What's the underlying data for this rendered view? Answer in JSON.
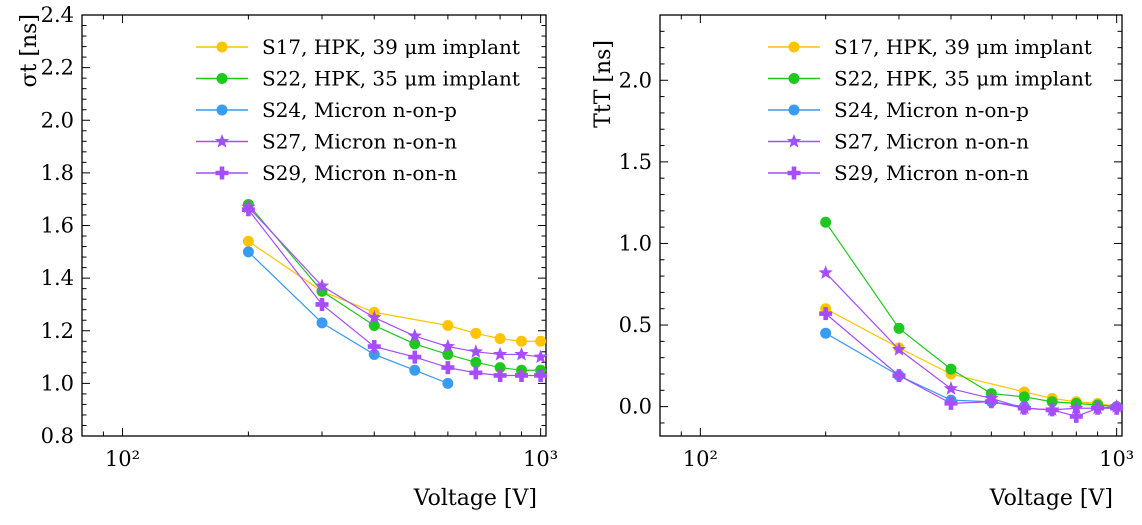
{
  "chart_data": [
    {
      "type": "line",
      "x_scale": "log",
      "xlabel": "Voltage [V]",
      "ylabel": "σt [ns]",
      "xlim": [
        80,
        1030
      ],
      "ylim": [
        0.8,
        2.4
      ],
      "xticks": [
        {
          "value": 100,
          "label": "10²"
        },
        {
          "value": 1000,
          "label": "10³"
        }
      ],
      "yticks": [
        {
          "value": 0.8,
          "label": "0.8"
        },
        {
          "value": 1.0,
          "label": "1.0"
        },
        {
          "value": 1.2,
          "label": "1.2"
        },
        {
          "value": 1.4,
          "label": "1.4"
        },
        {
          "value": 1.6,
          "label": "1.6"
        },
        {
          "value": 1.8,
          "label": "1.8"
        },
        {
          "value": 2.0,
          "label": "2.0"
        },
        {
          "value": 2.2,
          "label": "2.2"
        },
        {
          "value": 2.4,
          "label": "2.4"
        }
      ],
      "grid": false,
      "legend_position": "top-right",
      "series": [
        {
          "name": "S17, HPK, 39 μm implant",
          "color": "#ffc400",
          "marker": "circle",
          "x": [
            200,
            300,
            400,
            600,
            700,
            800,
            900,
            1000
          ],
          "y": [
            1.54,
            1.35,
            1.27,
            1.22,
            1.19,
            1.17,
            1.16,
            1.16
          ]
        },
        {
          "name": "S22, HPK, 35 μm implant",
          "color": "#1ec81e",
          "marker": "circle",
          "x": [
            200,
            300,
            400,
            500,
            600,
            700,
            800,
            900,
            1000
          ],
          "y": [
            1.68,
            1.35,
            1.22,
            1.15,
            1.11,
            1.08,
            1.06,
            1.05,
            1.05
          ]
        },
        {
          "name": "S24, Micron n-on-p",
          "color": "#3a9cf0",
          "marker": "circle",
          "x": [
            200,
            300,
            400,
            500,
            600
          ],
          "y": [
            1.5,
            1.23,
            1.11,
            1.05,
            1.0
          ]
        },
        {
          "name": "S27, Micron n-on-n",
          "color": "#a64dff",
          "marker": "star",
          "x": [
            200,
            300,
            400,
            500,
            600,
            700,
            800,
            900,
            1000
          ],
          "y": [
            1.67,
            1.37,
            1.25,
            1.18,
            1.14,
            1.12,
            1.11,
            1.11,
            1.1
          ]
        },
        {
          "name": "S29, Micron n-on-n",
          "color": "#a64dff",
          "marker": "plus",
          "x": [
            200,
            300,
            400,
            500,
            600,
            700,
            800,
            900,
            1000
          ],
          "y": [
            1.66,
            1.3,
            1.14,
            1.1,
            1.06,
            1.04,
            1.03,
            1.03,
            1.03
          ]
        }
      ]
    },
    {
      "type": "line",
      "x_scale": "log",
      "xlabel": "Voltage [V]",
      "ylabel": "TtT [ns]",
      "xlim": [
        80,
        1030
      ],
      "ylim": [
        -0.18,
        2.4
      ],
      "xticks": [
        {
          "value": 100,
          "label": "10²"
        },
        {
          "value": 1000,
          "label": "10³"
        }
      ],
      "yticks": [
        {
          "value": 0.0,
          "label": "0.0"
        },
        {
          "value": 0.5,
          "label": "0.5"
        },
        {
          "value": 1.0,
          "label": "1.0"
        },
        {
          "value": 1.5,
          "label": "1.5"
        },
        {
          "value": 2.0,
          "label": "2.0"
        }
      ],
      "grid": false,
      "legend_position": "top-right",
      "series": [
        {
          "name": "S17, HPK, 39 μm implant",
          "color": "#ffc400",
          "marker": "circle",
          "x": [
            200,
            300,
            400,
            600,
            700,
            800,
            900,
            1000
          ],
          "y": [
            0.6,
            0.36,
            0.2,
            0.09,
            0.05,
            0.03,
            0.02,
            0.0
          ]
        },
        {
          "name": "S22, HPK, 35 μm implant",
          "color": "#1ec81e",
          "marker": "circle",
          "x": [
            200,
            300,
            400,
            500,
            600,
            700,
            800,
            900,
            1000
          ],
          "y": [
            1.13,
            0.48,
            0.23,
            0.08,
            0.06,
            0.03,
            0.02,
            0.01,
            0.0
          ]
        },
        {
          "name": "S24, Micron n-on-p",
          "color": "#3a9cf0",
          "marker": "circle",
          "x": [
            200,
            300,
            400,
            500,
            600
          ],
          "y": [
            0.45,
            0.19,
            0.04,
            0.03,
            0.0
          ]
        },
        {
          "name": "S27, Micron n-on-n",
          "color": "#a64dff",
          "marker": "star",
          "x": [
            200,
            300,
            400,
            500,
            600,
            700,
            800,
            900,
            1000
          ],
          "y": [
            0.82,
            0.35,
            0.11,
            0.05,
            -0.01,
            -0.02,
            -0.01,
            -0.01,
            0.0
          ]
        },
        {
          "name": "S29, Micron n-on-n",
          "color": "#a64dff",
          "marker": "plus",
          "x": [
            200,
            300,
            400,
            500,
            600,
            700,
            800,
            900,
            1000
          ],
          "y": [
            0.57,
            0.19,
            0.02,
            0.03,
            -0.01,
            -0.02,
            -0.06,
            -0.01,
            -0.01
          ]
        }
      ]
    }
  ]
}
